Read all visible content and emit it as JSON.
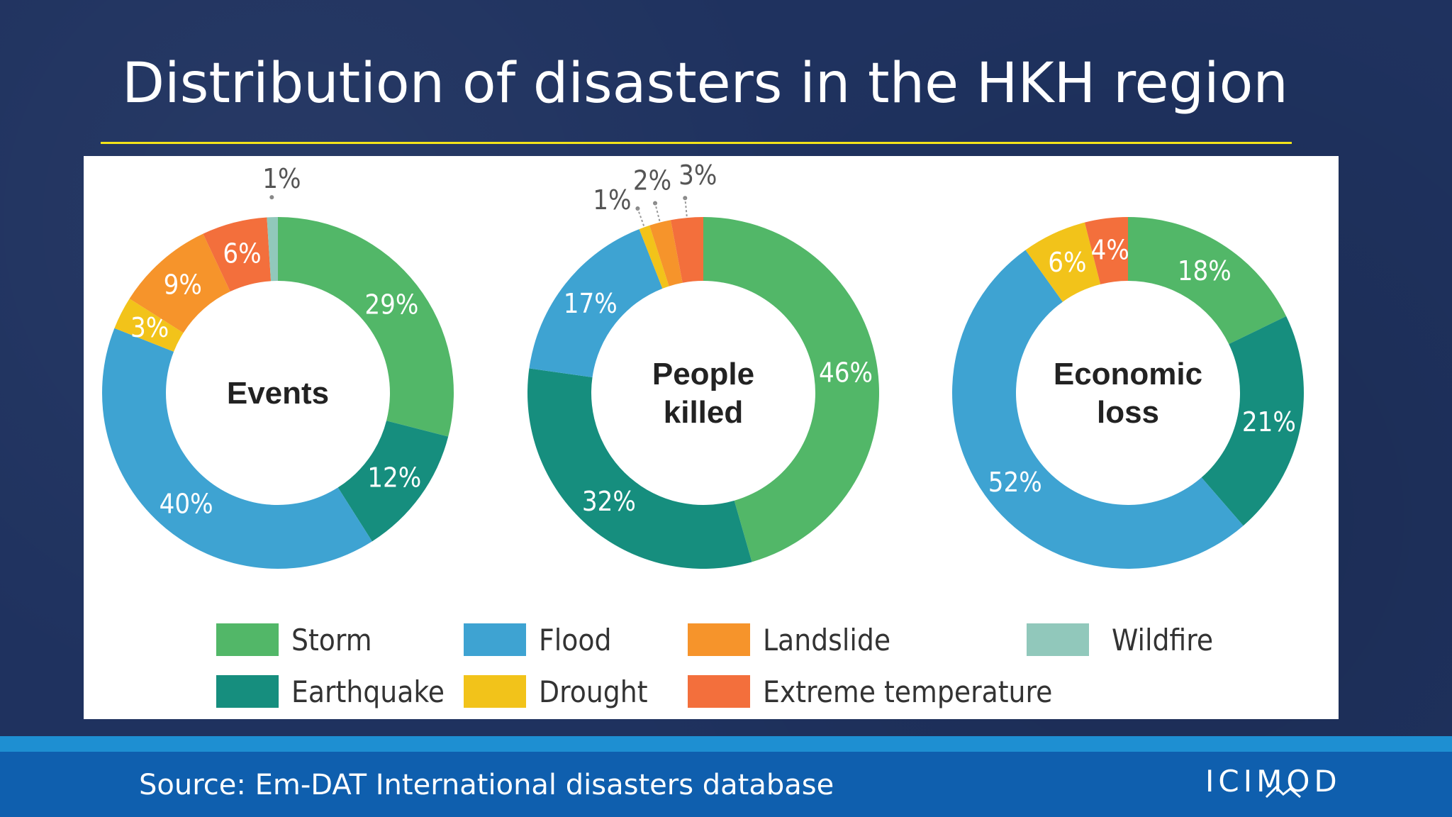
{
  "slide": {
    "title": "Distribution of disasters in the HKH region",
    "source": "Source: Em-DAT International disasters database",
    "logo_text": "ICIMOD"
  },
  "colors": {
    "Storm": "#52b768",
    "Earthquake": "#168e7e",
    "Flood": "#3ea3d2",
    "Drought": "#f2c31a",
    "Landslide": "#f6942b",
    "Extreme temperature": "#f36f3c",
    "Wildfire": "#91c8bb",
    "title_rule": "#f2e31a"
  },
  "chart_data": [
    {
      "type": "pie",
      "title": "Events",
      "slices": [
        {
          "label": "Storm",
          "value": 29,
          "text": "29%"
        },
        {
          "label": "Earthquake",
          "value": 12,
          "text": "12%"
        },
        {
          "label": "Flood",
          "value": 40,
          "text": "40%"
        },
        {
          "label": "Drought",
          "value": 3,
          "text": "3%"
        },
        {
          "label": "Landslide",
          "value": 9,
          "text": "9%"
        },
        {
          "label": "Extreme temperature",
          "value": 6,
          "text": "6%"
        },
        {
          "label": "Wildfire",
          "value": 1,
          "text": "1%"
        }
      ]
    },
    {
      "type": "pie",
      "title": "People killed",
      "title_lines": [
        "People",
        "killed"
      ],
      "slices": [
        {
          "label": "Storm",
          "value": 46,
          "text": "46%"
        },
        {
          "label": "Earthquake",
          "value": 32,
          "text": "32%"
        },
        {
          "label": "Flood",
          "value": 17,
          "text": "17%"
        },
        {
          "label": "Drought",
          "value": 1,
          "text": "1%"
        },
        {
          "label": "Landslide",
          "value": 2,
          "text": "2%"
        },
        {
          "label": "Extreme temperature",
          "value": 3,
          "text": "3%"
        }
      ]
    },
    {
      "type": "pie",
      "title": "Economic loss",
      "title_lines": [
        "Economic",
        "loss"
      ],
      "slices": [
        {
          "label": "Storm",
          "value": 18,
          "text": "18%"
        },
        {
          "label": "Earthquake",
          "value": 21,
          "text": "21%"
        },
        {
          "label": "Flood",
          "value": 52,
          "text": "52%"
        },
        {
          "label": "Drought",
          "value": 6,
          "text": "6%"
        },
        {
          "label": "Extreme temperature",
          "value": 4,
          "text": "4%"
        }
      ]
    }
  ],
  "legend": {
    "items": [
      "Storm",
      "Flood",
      "Landslide",
      "Wildfire",
      "Earthquake",
      "Drought",
      "Extreme temperature"
    ]
  }
}
